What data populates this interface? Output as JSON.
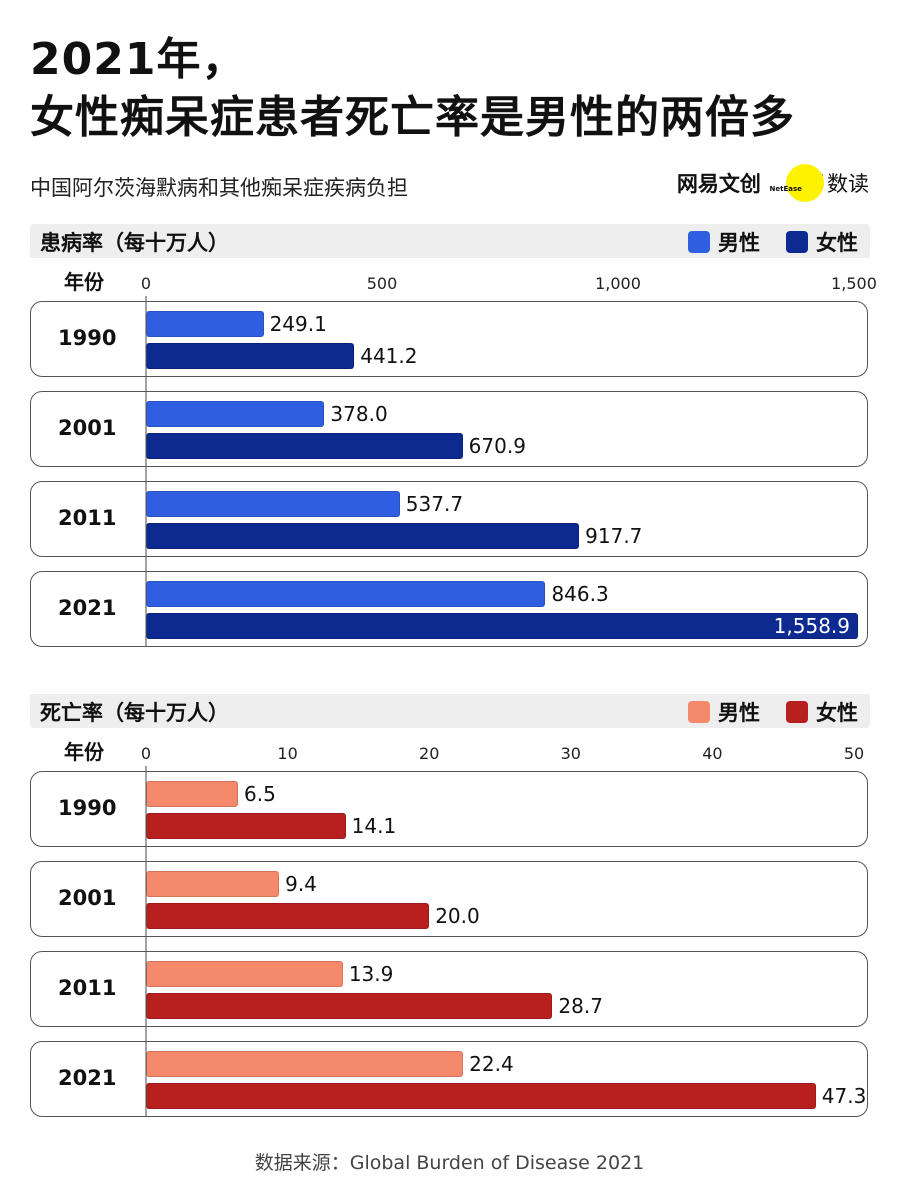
{
  "header": {
    "title_line1": "2021年，",
    "title_line2": "女性痴呆症患者死亡率是男性的两倍多",
    "subtitle": "中国阿尔茨海默病和其他痴呆症疾病负担",
    "brand_main": "网易文创",
    "brand_small": "NetEase",
    "brand_slash": "/",
    "brand_sub": "数读"
  },
  "colors": {
    "prevalence_male": "#2f5fe0",
    "prevalence_female": "#0c2a8f",
    "mortality_male": "#f4896b",
    "mortality_female": "#b81f1f"
  },
  "footer": {
    "source": "数据来源：Global Burden of Disease 2021"
  },
  "chart_data": [
    {
      "type": "bar",
      "orientation": "horizontal",
      "title": "患病率（每十万人）",
      "category_header": "年份",
      "categories": [
        "1990",
        "2001",
        "2011",
        "2021"
      ],
      "series": [
        {
          "name": "男性",
          "values": [
            249.1,
            378.0,
            537.7,
            846.3
          ],
          "labels": [
            "249.1",
            "378.0",
            "537.7",
            "846.3"
          ]
        },
        {
          "name": "女性",
          "values": [
            441.2,
            670.9,
            917.7,
            1558.9
          ],
          "labels": [
            "441.2",
            "670.9",
            "917.7",
            "1,558.9"
          ]
        }
      ],
      "xlim": [
        0,
        1500
      ],
      "ticks": [
        0,
        500,
        1000,
        1500
      ],
      "tick_labels": [
        "0",
        "500",
        "1,000",
        "1,500"
      ],
      "legend_position": "top-right"
    },
    {
      "type": "bar",
      "orientation": "horizontal",
      "title": "死亡率（每十万人）",
      "category_header": "年份",
      "categories": [
        "1990",
        "2001",
        "2011",
        "2021"
      ],
      "series": [
        {
          "name": "男性",
          "values": [
            6.5,
            9.4,
            13.9,
            22.4
          ],
          "labels": [
            "6.5",
            "9.4",
            "13.9",
            "22.4"
          ]
        },
        {
          "name": "女性",
          "values": [
            14.1,
            20.0,
            28.7,
            47.3
          ],
          "labels": [
            "14.1",
            "20.0",
            "28.7",
            "47.3"
          ]
        }
      ],
      "xlim": [
        0,
        50
      ],
      "ticks": [
        0,
        10,
        20,
        30,
        40,
        50
      ],
      "tick_labels": [
        "0",
        "10",
        "20",
        "30",
        "40",
        "50"
      ],
      "legend_position": "top-right"
    }
  ]
}
